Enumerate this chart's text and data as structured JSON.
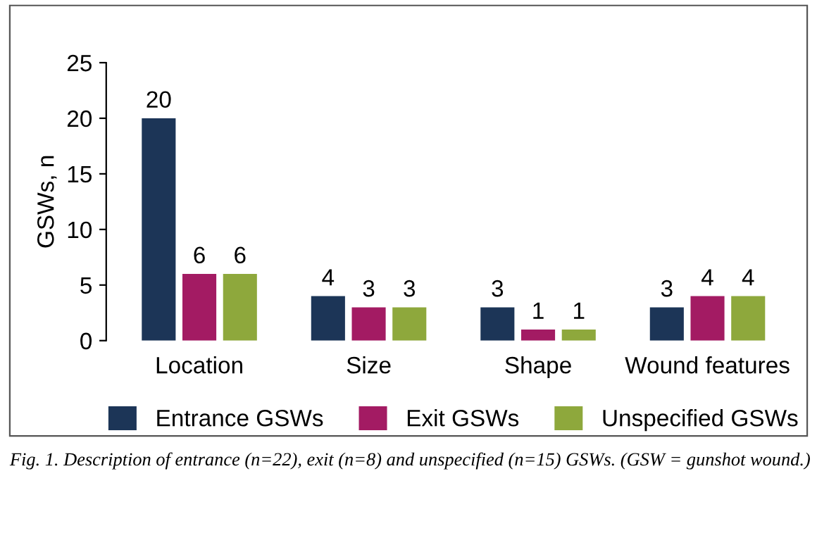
{
  "chart_data": {
    "type": "bar",
    "ylabel": "GSWs, n",
    "categories": [
      "Location",
      "Size",
      "Shape",
      "Wound features"
    ],
    "series": [
      {
        "name": "Entrance GSWs",
        "color": "#1c3557",
        "values": [
          20,
          4,
          3,
          3
        ]
      },
      {
        "name": "Exit GSWs",
        "color": "#a31b63",
        "values": [
          6,
          3,
          1,
          4
        ]
      },
      {
        "name": "Unspecified GSWs",
        "color": "#8ea83c",
        "values": [
          6,
          3,
          1,
          4
        ]
      }
    ],
    "ylim": [
      0,
      25
    ],
    "yticks": [
      0,
      5,
      10,
      15,
      20,
      25
    ],
    "data_labels": true,
    "grid": false,
    "legend": "bottom",
    "annotations": [
      "Fig. 1. Description of entrance (n=22), exit (n=8) and unspecified (n=15) GSWs. (GSW = gunshot wound.)"
    ]
  }
}
